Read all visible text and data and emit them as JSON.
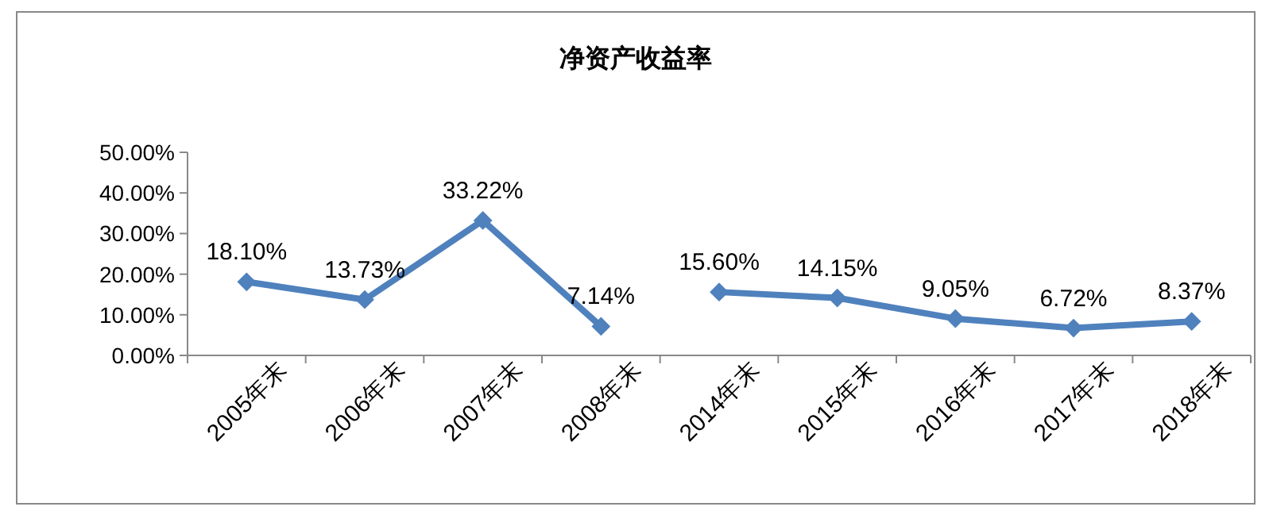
{
  "chart_data": {
    "type": "line",
    "title": "净资产收益率",
    "categories": [
      "2005年末",
      "2006年末",
      "2007年末",
      "2008年末",
      "2014年末",
      "2015年末",
      "2016年末",
      "2017年末",
      "2018年末"
    ],
    "series": [
      {
        "color": "#4f81bd",
        "values": [
          18.1,
          13.73,
          33.22,
          7.14,
          null,
          null,
          null,
          null,
          null
        ],
        "value_labels": [
          "18.10%",
          "13.73%",
          "33.22%",
          "7.14%",
          null,
          null,
          null,
          null,
          null
        ]
      },
      {
        "color": "#4f81bd",
        "values": [
          null,
          null,
          null,
          null,
          15.6,
          14.15,
          9.05,
          6.72,
          8.37
        ],
        "value_labels": [
          null,
          null,
          null,
          null,
          "15.60%",
          "14.15%",
          "9.05%",
          "6.72%",
          "8.37%"
        ]
      }
    ],
    "ylim": [
      0,
      50
    ],
    "yticks": [
      {
        "value": 0,
        "label": "0.00%"
      },
      {
        "value": 10,
        "label": "10.00%"
      },
      {
        "value": 20,
        "label": "20.00%"
      },
      {
        "value": 30,
        "label": "30.00%"
      },
      {
        "value": 40,
        "label": "40.00%"
      },
      {
        "value": 50,
        "label": "50.00%"
      }
    ],
    "grid": false,
    "marker": "diamond",
    "line_style": "solid"
  }
}
